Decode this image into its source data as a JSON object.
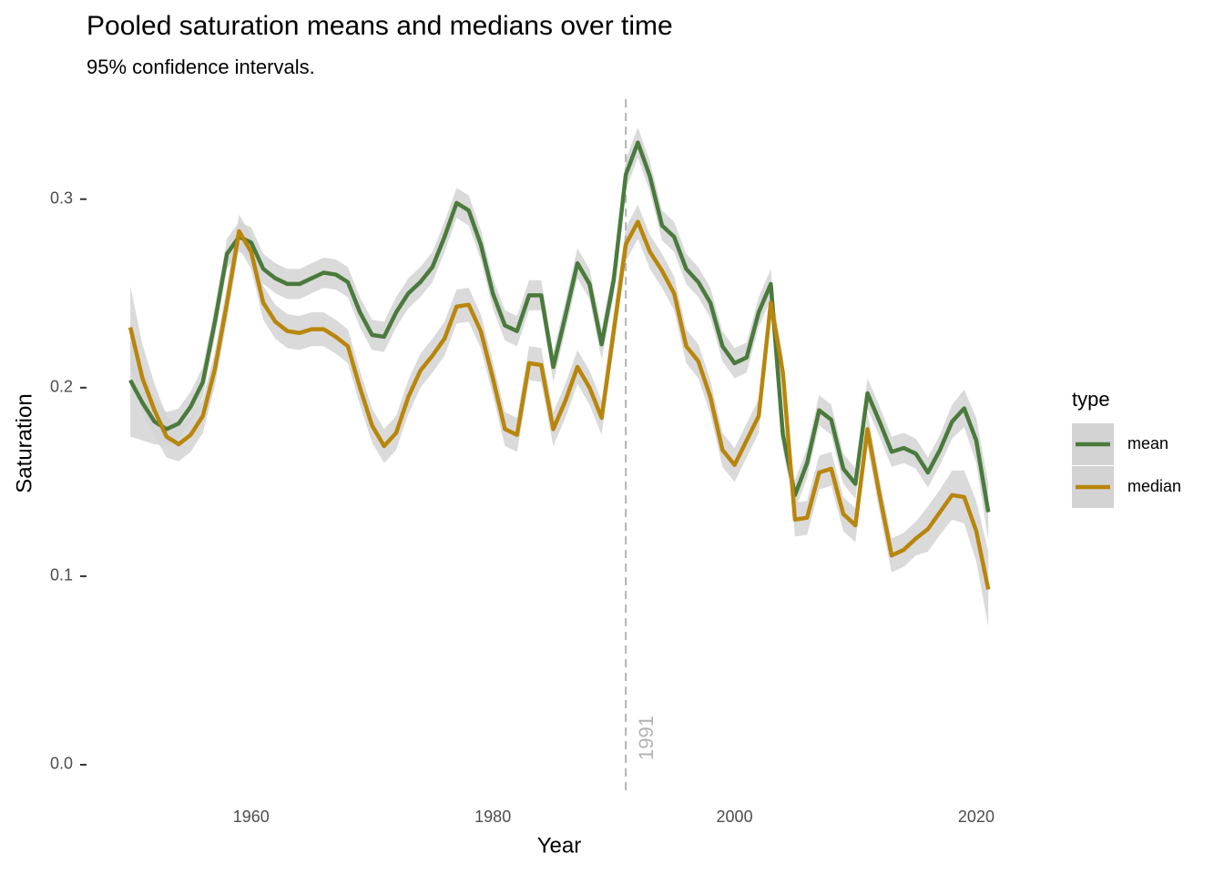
{
  "chart_data": {
    "type": "line",
    "title": "Pooled saturation means and medians over time",
    "subtitle": "95% confidence intervals.",
    "x_label": "Year",
    "y_label": "Saturation",
    "legend_title": "type",
    "legend_position": "right",
    "grid": false,
    "band_color": "#d3d3d3",
    "x": [
      1950,
      1951,
      1952,
      1953,
      1954,
      1955,
      1956,
      1957,
      1958,
      1959,
      1960,
      1961,
      1962,
      1963,
      1964,
      1965,
      1966,
      1967,
      1968,
      1969,
      1970,
      1971,
      1972,
      1973,
      1974,
      1975,
      1976,
      1977,
      1978,
      1979,
      1980,
      1981,
      1982,
      1983,
      1984,
      1985,
      1986,
      1987,
      1988,
      1989,
      1990,
      1991,
      1992,
      1993,
      1994,
      1995,
      1996,
      1997,
      1998,
      1999,
      2000,
      2001,
      2002,
      2003,
      2004,
      2005,
      2006,
      2007,
      2008,
      2009,
      2010,
      2011,
      2012,
      2013,
      2014,
      2015,
      2016,
      2017,
      2018,
      2019,
      2020,
      2021
    ],
    "series": [
      {
        "name": "mean",
        "color": "#4a7a3c",
        "values": [
          0.204,
          0.192,
          0.182,
          0.178,
          0.181,
          0.19,
          0.203,
          0.235,
          0.271,
          0.28,
          0.277,
          0.263,
          0.258,
          0.255,
          0.255,
          0.258,
          0.261,
          0.26,
          0.256,
          0.24,
          0.228,
          0.227,
          0.24,
          0.25,
          0.256,
          0.264,
          0.28,
          0.298,
          0.294,
          0.276,
          0.25,
          0.233,
          0.23,
          0.249,
          0.249,
          0.211,
          0.238,
          0.266,
          0.255,
          0.223,
          0.257,
          0.313,
          0.33,
          0.312,
          0.286,
          0.28,
          0.263,
          0.256,
          0.245,
          0.222,
          0.213,
          0.216,
          0.24,
          0.255,
          0.175,
          0.143,
          0.16,
          0.188,
          0.183,
          0.157,
          0.149,
          0.197,
          0.182,
          0.166,
          0.168,
          0.165,
          0.155,
          0.167,
          0.182,
          0.189,
          0.172,
          0.134
        ],
        "ci": [
          0.03,
          0.02,
          0.012,
          0.009,
          0.008,
          0.008,
          0.008,
          0.008,
          0.008,
          0.008,
          0.008,
          0.008,
          0.008,
          0.008,
          0.008,
          0.008,
          0.008,
          0.008,
          0.008,
          0.008,
          0.008,
          0.008,
          0.008,
          0.008,
          0.008,
          0.008,
          0.008,
          0.008,
          0.008,
          0.008,
          0.008,
          0.008,
          0.008,
          0.008,
          0.008,
          0.008,
          0.008,
          0.008,
          0.008,
          0.008,
          0.008,
          0.008,
          0.008,
          0.008,
          0.008,
          0.008,
          0.008,
          0.008,
          0.008,
          0.008,
          0.008,
          0.008,
          0.008,
          0.008,
          0.008,
          0.008,
          0.008,
          0.008,
          0.008,
          0.008,
          0.008,
          0.008,
          0.008,
          0.008,
          0.008,
          0.008,
          0.008,
          0.008,
          0.009,
          0.01,
          0.012,
          0.015
        ]
      },
      {
        "name": "median",
        "color": "#b8860b",
        "values": [
          0.232,
          0.205,
          0.188,
          0.174,
          0.17,
          0.175,
          0.185,
          0.21,
          0.245,
          0.283,
          0.272,
          0.245,
          0.235,
          0.23,
          0.229,
          0.231,
          0.231,
          0.227,
          0.222,
          0.2,
          0.18,
          0.169,
          0.176,
          0.195,
          0.209,
          0.217,
          0.226,
          0.243,
          0.244,
          0.23,
          0.205,
          0.178,
          0.175,
          0.213,
          0.212,
          0.178,
          0.193,
          0.211,
          0.2,
          0.184,
          0.23,
          0.276,
          0.288,
          0.272,
          0.262,
          0.25,
          0.222,
          0.214,
          0.195,
          0.167,
          0.159,
          0.172,
          0.185,
          0.245,
          0.208,
          0.13,
          0.131,
          0.155,
          0.157,
          0.133,
          0.127,
          0.178,
          0.143,
          0.111,
          0.114,
          0.12,
          0.125,
          0.134,
          0.143,
          0.142,
          0.124,
          0.093
        ],
        "ci": [
          0.022,
          0.018,
          0.014,
          0.011,
          0.009,
          0.009,
          0.009,
          0.009,
          0.009,
          0.009,
          0.009,
          0.009,
          0.009,
          0.009,
          0.009,
          0.009,
          0.009,
          0.009,
          0.009,
          0.009,
          0.009,
          0.009,
          0.009,
          0.009,
          0.009,
          0.009,
          0.009,
          0.009,
          0.009,
          0.009,
          0.009,
          0.009,
          0.009,
          0.009,
          0.009,
          0.009,
          0.009,
          0.009,
          0.009,
          0.009,
          0.009,
          0.009,
          0.009,
          0.009,
          0.009,
          0.009,
          0.009,
          0.009,
          0.009,
          0.009,
          0.009,
          0.009,
          0.009,
          0.009,
          0.009,
          0.009,
          0.009,
          0.009,
          0.009,
          0.009,
          0.009,
          0.009,
          0.009,
          0.009,
          0.009,
          0.009,
          0.012,
          0.012,
          0.013,
          0.014,
          0.016,
          0.02
        ]
      }
    ],
    "vline": {
      "x": 1991,
      "color": "#b3b3b3"
    },
    "xlim": [
      1946.45,
      2024.45
    ],
    "ylim": [
      -0.0145,
      0.353
    ],
    "xticks": [
      1960,
      1980,
      2000,
      2020
    ],
    "yticks": [
      {
        "value": 0,
        "label": "0.0"
      },
      0.1,
      0.2,
      0.3
    ]
  }
}
